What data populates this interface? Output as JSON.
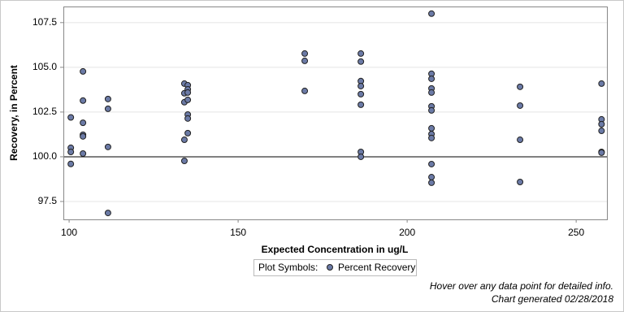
{
  "chart_data": {
    "type": "scatter",
    "x_label": "Expected Concentration in ug/L",
    "y_label": "Recovery, in Percent",
    "x": [
      100.5,
      100.5,
      100.5,
      100.5,
      104.1,
      104.1,
      104.1,
      104.1,
      104.1,
      104.1,
      111.5,
      111.5,
      111.5,
      111.5,
      134.1,
      134.1,
      134.1,
      134.1,
      134.1,
      135.1,
      135.1,
      135.1,
      135.1,
      135.1,
      135.1,
      135.1,
      169.7,
      169.7,
      169.7,
      186.3,
      186.3,
      186.3,
      186.3,
      186.3,
      186.3,
      186.3,
      186.3,
      207.2,
      207.2,
      207.2,
      207.2,
      207.2,
      207.2,
      207.2,
      207.2,
      207.2,
      207.2,
      207.2,
      207.2,
      207.2,
      233.4,
      233.4,
      233.4,
      233.4,
      257.5,
      257.5,
      257.5,
      257.5,
      257.5,
      257.5
    ],
    "series": [
      {
        "name": "Percent Recovery",
        "color": "#6b7aa6",
        "values": [
          102.2,
          100.5,
          100.27,
          99.6,
          104.77,
          103.14,
          101.9,
          101.23,
          101.14,
          100.18,
          103.23,
          102.68,
          100.55,
          96.86,
          104.09,
          103.55,
          103.05,
          100.95,
          99.77,
          104.0,
          103.77,
          103.59,
          103.18,
          102.36,
          102.14,
          101.32,
          105.77,
          105.36,
          103.68,
          105.77,
          105.32,
          104.23,
          103.95,
          103.5,
          102.91,
          100.27,
          100.0,
          108.0,
          104.64,
          104.36,
          103.82,
          103.59,
          102.82,
          102.59,
          101.59,
          101.27,
          101.05,
          99.59,
          98.86,
          98.55,
          103.91,
          102.86,
          100.95,
          98.59,
          104.09,
          102.09,
          101.82,
          101.45,
          100.27,
          100.23
        ]
      }
    ],
    "xlim": [
      98.3,
      259.1
    ],
    "ylim": [
      96.5,
      108.4
    ],
    "xticks": [
      100,
      150,
      200,
      250
    ],
    "yticks": [
      97.5,
      {
        "value": 100,
        "label": "100.0"
      },
      {
        "value": 102.5,
        "label": "102.5"
      },
      {
        "value": 105,
        "label": "105.0"
      },
      107.5
    ],
    "grid": true,
    "reference_line": 100,
    "legend_title": "Plot Symbols:",
    "footnotes": [
      "Hover over any data point for detailed info.",
      "Chart generated 02/28/2018"
    ]
  }
}
